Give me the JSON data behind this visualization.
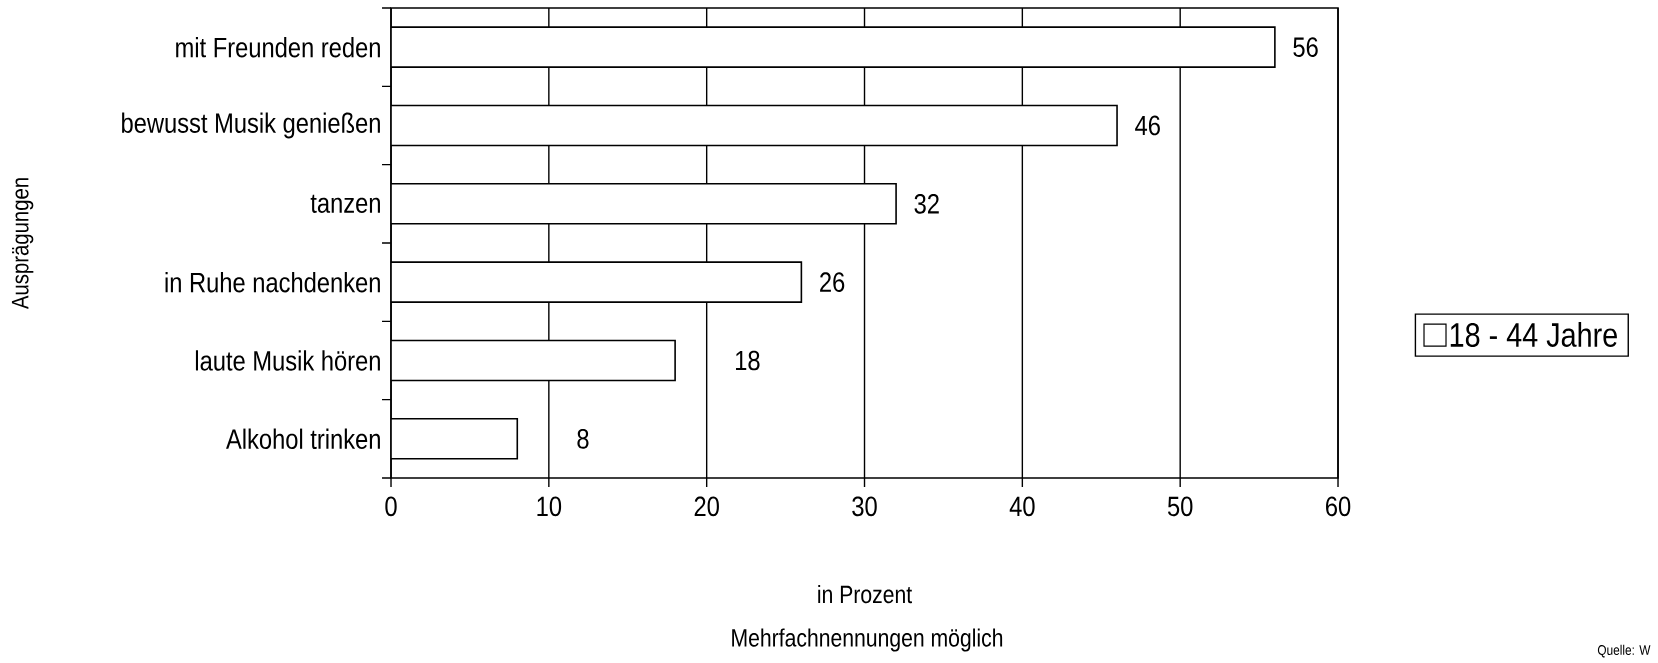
{
  "chart_data": {
    "type": "bar",
    "orientation": "horizontal",
    "categories": [
      "mit Freunden reden",
      "bewusst Musik genießen",
      "tanzen",
      "in Ruhe nachdenken",
      "laute Musik hören",
      "Alkohol trinken"
    ],
    "series": [
      {
        "name": "18 - 44 Jahre",
        "color": "#ffffff",
        "values": [
          56,
          46,
          32,
          26,
          18,
          8
        ]
      }
    ],
    "xlim": [
      0,
      60
    ],
    "xticks": [
      0,
      10,
      20,
      30,
      40,
      50,
      60
    ],
    "xlabel": "in Prozent",
    "ylabel": "Ausprägungen",
    "annotations": [
      "Mehrfachnennungen möglich",
      "Quelle: W"
    ],
    "data_labels": true,
    "legend": "right",
    "grid": "x"
  }
}
